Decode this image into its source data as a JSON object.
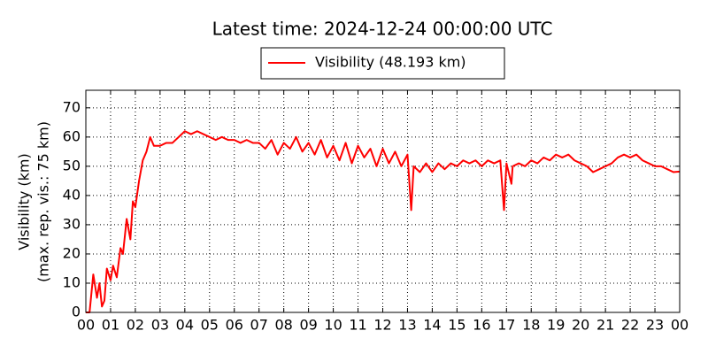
{
  "chart_data": {
    "type": "line",
    "title": "Latest time: 2024-12-24 00:00:00 UTC",
    "ylabel": [
      "Visibility (km)",
      "(max. rep. vis.: 75 km)"
    ],
    "series": [
      {
        "name": "Visibility (48.193 km)",
        "color": "#ff0000",
        "x": [
          0,
          0.15,
          0.3,
          0.45,
          0.55,
          0.65,
          0.75,
          0.85,
          1.0,
          1.1,
          1.25,
          1.4,
          1.5,
          1.65,
          1.8,
          1.9,
          2.0,
          2.15,
          2.3,
          2.45,
          2.6,
          2.75,
          3.0,
          3.25,
          3.5,
          3.75,
          4.0,
          4.25,
          4.5,
          4.75,
          5.0,
          5.25,
          5.5,
          5.75,
          6.0,
          6.25,
          6.5,
          6.75,
          7.0,
          7.25,
          7.5,
          7.75,
          8.0,
          8.25,
          8.5,
          8.75,
          9.0,
          9.25,
          9.5,
          9.75,
          10.0,
          10.25,
          10.5,
          10.75,
          11.0,
          11.25,
          11.5,
          11.75,
          12.0,
          12.25,
          12.5,
          12.75,
          13.0,
          13.15,
          13.25,
          13.5,
          13.75,
          14.0,
          14.25,
          14.5,
          14.75,
          15.0,
          15.25,
          15.5,
          15.75,
          16.0,
          16.25,
          16.5,
          16.75,
          16.9,
          17.0,
          17.2,
          17.25,
          17.5,
          17.75,
          18.0,
          18.25,
          18.5,
          18.75,
          19.0,
          19.25,
          19.5,
          19.75,
          20.0,
          20.25,
          20.5,
          20.75,
          21.0,
          21.25,
          21.5,
          21.75,
          22.0,
          22.25,
          22.5,
          22.75,
          23.0,
          23.25,
          23.5,
          23.75,
          24.0
        ],
        "values": [
          0,
          0,
          13,
          5,
          10,
          2,
          4,
          15,
          11,
          16,
          12,
          22,
          20,
          32,
          25,
          38,
          36,
          45,
          52,
          55,
          60,
          57,
          57,
          58,
          58,
          60,
          62,
          61,
          62,
          61,
          60,
          59,
          60,
          59,
          59,
          58,
          59,
          58,
          58,
          56,
          59,
          54,
          58,
          56,
          60,
          55,
          58,
          54,
          59,
          53,
          57,
          52,
          58,
          51,
          57,
          53,
          56,
          50,
          56,
          51,
          55,
          50,
          54,
          35,
          50,
          48,
          51,
          48,
          51,
          49,
          51,
          50,
          52,
          51,
          52,
          50,
          52,
          51,
          52,
          35,
          51,
          44,
          50,
          51,
          50,
          52,
          51,
          53,
          52,
          54,
          53,
          54,
          52,
          51,
          50,
          48,
          49,
          50,
          51,
          53,
          54,
          53,
          54,
          52,
          51,
          50,
          50,
          49,
          48,
          48.193
        ]
      }
    ],
    "xlim": [
      0,
      24
    ],
    "xticks": [
      {
        "value": 0,
        "label": "00"
      },
      {
        "value": 1,
        "label": "01"
      },
      {
        "value": 2,
        "label": "02"
      },
      {
        "value": 3,
        "label": "03"
      },
      {
        "value": 4,
        "label": "04"
      },
      {
        "value": 5,
        "label": "05"
      },
      {
        "value": 6,
        "label": "06"
      },
      {
        "value": 7,
        "label": "07"
      },
      {
        "value": 8,
        "label": "08"
      },
      {
        "value": 9,
        "label": "09"
      },
      {
        "value": 10,
        "label": "10"
      },
      {
        "value": 11,
        "label": "11"
      },
      {
        "value": 12,
        "label": "12"
      },
      {
        "value": 13,
        "label": "13"
      },
      {
        "value": 14,
        "label": "14"
      },
      {
        "value": 15,
        "label": "15"
      },
      {
        "value": 16,
        "label": "16"
      },
      {
        "value": 17,
        "label": "17"
      },
      {
        "value": 18,
        "label": "18"
      },
      {
        "value": 19,
        "label": "19"
      },
      {
        "value": 20,
        "label": "20"
      },
      {
        "value": 21,
        "label": "21"
      },
      {
        "value": 22,
        "label": "22"
      },
      {
        "value": 23,
        "label": "23"
      },
      {
        "value": 24,
        "label": "00"
      }
    ],
    "ylim": [
      0,
      76
    ],
    "yticks": [
      0,
      10,
      20,
      30,
      40,
      50,
      60,
      70
    ],
    "grid": true
  }
}
